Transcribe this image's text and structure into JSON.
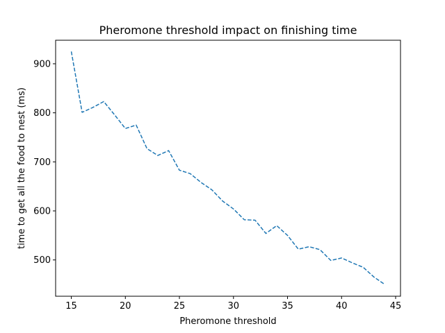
{
  "chart_data": {
    "type": "line",
    "title": "Pheromone threshold impact on finishing time",
    "xlabel": "Pheromone threshold",
    "ylabel": "time to get all the food to nest (ms)",
    "xlim": [
      13.55,
      45.45
    ],
    "ylim": [
      426,
      948
    ],
    "xticks": [
      15,
      20,
      25,
      30,
      35,
      40,
      45
    ],
    "yticks": [
      500,
      600,
      700,
      800,
      900
    ],
    "grid": false,
    "legend": false,
    "line_style": "dashed",
    "color": "#1f77b4",
    "series": [
      {
        "x": [
          15,
          16,
          17,
          18,
          19,
          20,
          21,
          22,
          23,
          24,
          25,
          26,
          27,
          28,
          29,
          30,
          31,
          32,
          33,
          34,
          35,
          36,
          37,
          38,
          39,
          40,
          41,
          42,
          43,
          44
        ],
        "values": [
          925,
          801,
          811,
          823,
          796,
          768,
          775,
          727,
          713,
          723,
          683,
          676,
          658,
          643,
          620,
          604,
          582,
          581,
          554,
          570,
          550,
          522,
          527,
          521,
          499,
          504,
          494,
          485,
          465,
          450
        ]
      }
    ]
  }
}
